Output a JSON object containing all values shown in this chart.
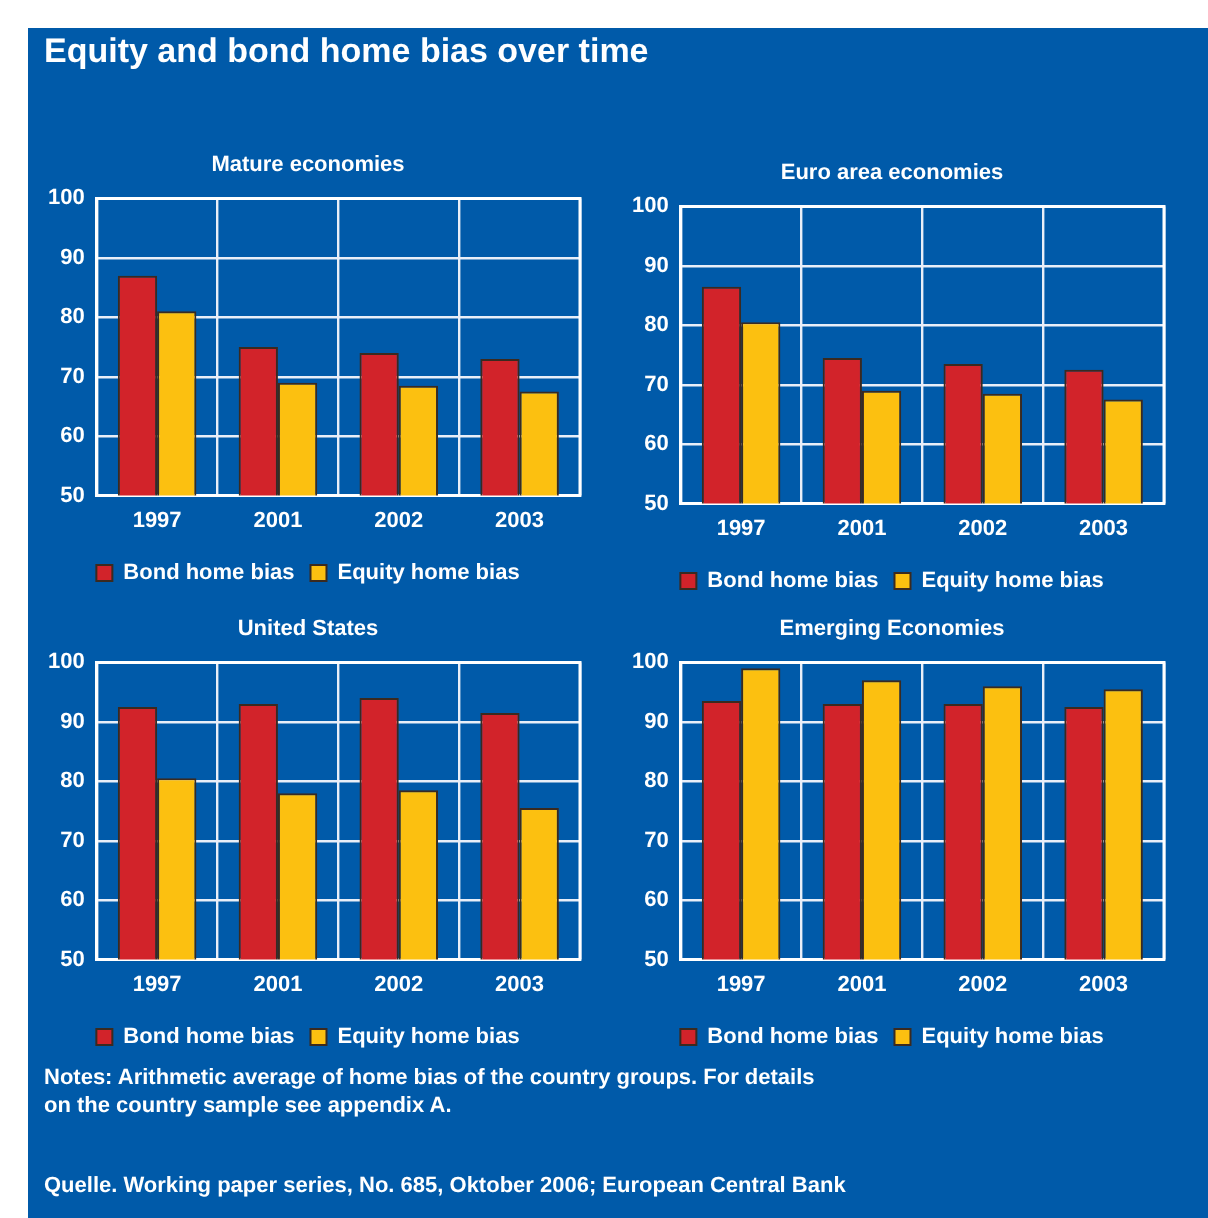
{
  "chart_data": [
    {
      "type": "other",
      "title": "Equity and bond home bias over time",
      "annotations": [
        "Notes: Arithmetic average of home bias of the country groups. For details on the country sample see appendix A.",
        "Quelle. Working paper series, No. 685, Oktober 2006; European Central Bank"
      ]
    },
    {
      "type": "bar",
      "title": "Mature economies",
      "categories": [
        "1997",
        "2001",
        "2002",
        "2003"
      ],
      "series": [
        {
          "name": "Bond home bias",
          "color": "#d2232a",
          "values": [
            87,
            75,
            74,
            73
          ]
        },
        {
          "name": "Equity home bias",
          "color": "#fcc010",
          "values": [
            81,
            69,
            68.5,
            67.5
          ]
        }
      ],
      "ylim": [
        50,
        100
      ],
      "yticks": [
        50,
        60,
        70,
        80,
        90,
        100
      ],
      "grid": true,
      "legend": "bottom"
    },
    {
      "type": "bar",
      "title": "Euro area economies",
      "categories": [
        "1997",
        "2001",
        "2002",
        "2003"
      ],
      "series": [
        {
          "name": "Bond home bias",
          "color": "#d2232a",
          "values": [
            86.5,
            74.5,
            73.5,
            72.5
          ]
        },
        {
          "name": "Equity home bias",
          "color": "#fcc010",
          "values": [
            80.5,
            69,
            68.5,
            67.5
          ]
        }
      ],
      "ylim": [
        50,
        100
      ],
      "yticks": [
        50,
        60,
        70,
        80,
        90,
        100
      ],
      "grid": true,
      "legend": "bottom"
    },
    {
      "type": "bar",
      "title": "United States",
      "categories": [
        "1997",
        "2001",
        "2002",
        "2003"
      ],
      "series": [
        {
          "name": "Bond home bias",
          "color": "#d2232a",
          "values": [
            92.5,
            93,
            94,
            91.5
          ]
        },
        {
          "name": "Equity home bias",
          "color": "#fcc010",
          "values": [
            80.5,
            78,
            78.5,
            75.5
          ]
        }
      ],
      "ylim": [
        50,
        100
      ],
      "yticks": [
        50,
        60,
        70,
        80,
        90,
        100
      ],
      "grid": true,
      "legend": "bottom"
    },
    {
      "type": "bar",
      "title": "Emerging Economies",
      "categories": [
        "1997",
        "2001",
        "2002",
        "2003"
      ],
      "series": [
        {
          "name": "Bond home bias",
          "color": "#d2232a",
          "values": [
            93.5,
            93,
            93,
            92.5
          ]
        },
        {
          "name": "Equity home bias",
          "color": "#fcc010",
          "values": [
            99,
            97,
            96,
            95.5
          ]
        }
      ],
      "ylim": [
        50,
        100
      ],
      "yticks": [
        50,
        60,
        70,
        80,
        90,
        100
      ],
      "grid": true,
      "legend": "bottom"
    }
  ]
}
